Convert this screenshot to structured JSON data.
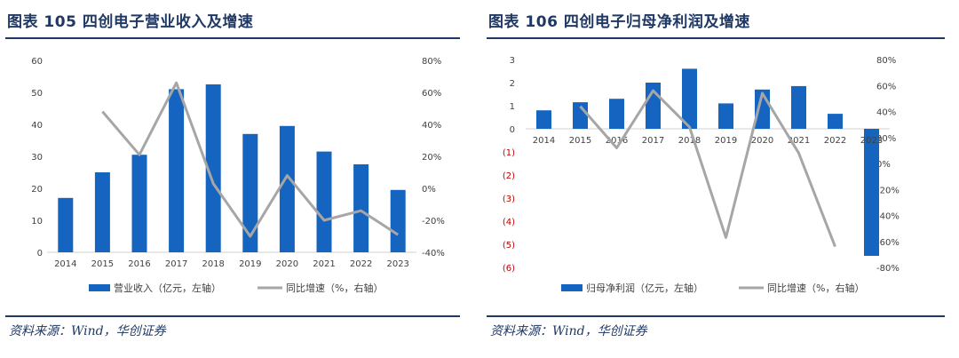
{
  "charts": [
    {
      "figure_title": "图表 105   四创电子营业收入及增速",
      "source": "资料来源：Wind，华创证券",
      "chart_data": {
        "type": "bar+line",
        "categories": [
          "2014",
          "2015",
          "2016",
          "2017",
          "2018",
          "2019",
          "2020",
          "2021",
          "2022",
          "2023"
        ],
        "series": [
          {
            "name": "营业收入（亿元，左轴）",
            "type": "bar",
            "axis": "left",
            "values": [
              17,
              25,
              30.5,
              51,
              52.5,
              37,
              39.5,
              31.5,
              27.5,
              19.5
            ]
          },
          {
            "name": "同比增速（%，右轴）",
            "type": "line",
            "axis": "right",
            "values": [
              null,
              48,
              21,
              66,
              3,
              -30,
              8,
              -20,
              -14,
              -29
            ]
          }
        ],
        "left_axis": {
          "min": 0,
          "max": 60,
          "step": 10,
          "ticks": [
            "0",
            "10",
            "20",
            "30",
            "40",
            "50",
            "60"
          ]
        },
        "right_axis": {
          "min": -40,
          "max": 80,
          "step": 20,
          "ticks": [
            "-40%",
            "-20%",
            "0%",
            "20%",
            "40%",
            "60%",
            "80%"
          ]
        },
        "bar_color": "#1565c0",
        "line_color": "#a6a6a6",
        "legend_position": "bottom",
        "grid": false
      }
    },
    {
      "figure_title": "图表 106   四创电子归母净利润及增速",
      "source": "资料来源：Wind，华创证券",
      "chart_data": {
        "type": "bar+line",
        "categories": [
          "2014",
          "2015",
          "2016",
          "2017",
          "2018",
          "2019",
          "2020",
          "2021",
          "2022",
          "2023"
        ],
        "series": [
          {
            "name": "归母净利润（亿元，左轴）",
            "type": "bar",
            "axis": "left",
            "values": [
              0.8,
              1.15,
              1.3,
              2.0,
              2.6,
              1.1,
              1.7,
              1.85,
              0.65,
              -5.5
            ]
          },
          {
            "name": "同比增速（%，右轴）",
            "type": "line",
            "axis": "right",
            "values": [
              null,
              44,
              12,
              56,
              28,
              -57,
              54,
              8,
              -64,
              null
            ]
          }
        ],
        "left_axis": {
          "min": -6,
          "max": 3,
          "step": 1,
          "ticks": [
            "(6)",
            "(5)",
            "(4)",
            "(3)",
            "(2)",
            "(1)",
            "0",
            "1",
            "2",
            "3"
          ]
        },
        "right_axis": {
          "min": -80,
          "max": 80,
          "step": 20,
          "ticks": [
            "-80%",
            "-60%",
            "-40%",
            "-20%",
            "0%",
            "20%",
            "40%",
            "60%",
            "80%"
          ]
        },
        "bar_color": "#1565c0",
        "line_color": "#a6a6a6",
        "negative_tick_color": "#c00000",
        "legend_position": "bottom",
        "grid": false
      }
    }
  ]
}
